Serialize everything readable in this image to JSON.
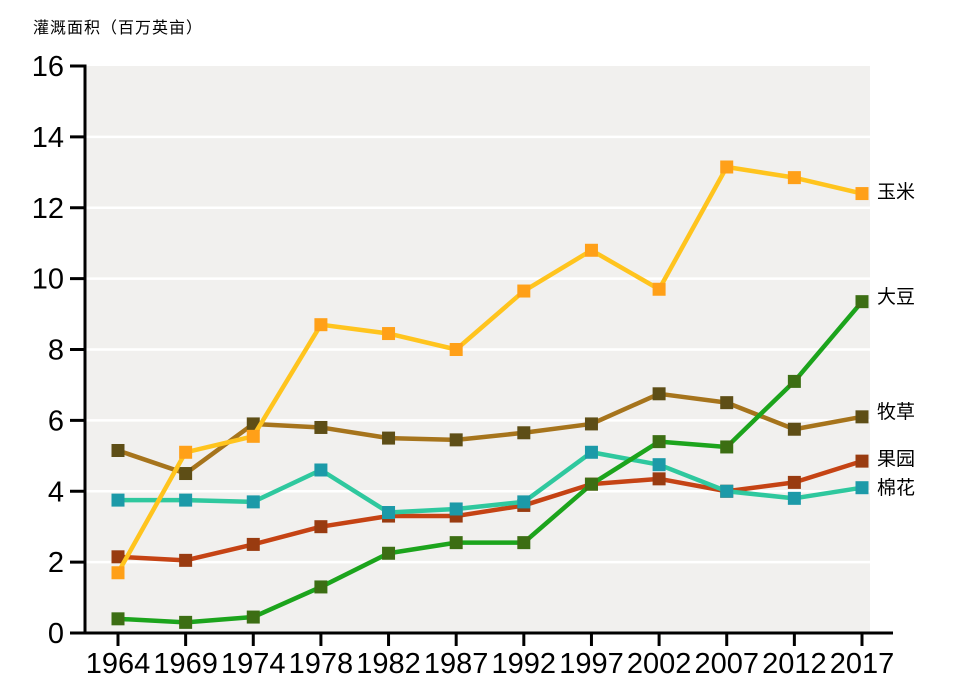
{
  "title": "灌溉面积（百万英亩）",
  "colors": {
    "page_bg": "#FFFFFF",
    "plot_bg": "#F1F0EE",
    "grid": "#FFFFFF",
    "axis": "#000000",
    "text": "#000000"
  },
  "chart_data": {
    "type": "line",
    "title": "灌溉面积（百万英亩）",
    "ylabel": "灌溉面积（百万英亩）",
    "xlabel": "",
    "categories": [
      "1964",
      "1969",
      "1974",
      "1978",
      "1982",
      "1987",
      "1992",
      "1997",
      "2002",
      "2007",
      "2012",
      "2017"
    ],
    "ylim": [
      0,
      16
    ],
    "yticks": [
      0,
      2,
      4,
      6,
      8,
      10,
      12,
      14,
      16
    ],
    "grid": "horizontal-white-on-gray",
    "legend_position": "right-end-labels",
    "marker": "square",
    "series": [
      {
        "name": "玉米",
        "values": [
          1.7,
          5.1,
          5.55,
          8.7,
          8.45,
          8.0,
          9.65,
          10.8,
          9.7,
          13.15,
          12.85,
          12.4
        ],
        "line_color": "#FFC41E",
        "marker_color": "#FFA018",
        "label_y": 191
      },
      {
        "name": "大豆",
        "values": [
          0.4,
          0.3,
          0.45,
          1.3,
          2.25,
          2.55,
          2.55,
          4.2,
          5.4,
          5.25,
          7.1,
          9.35
        ],
        "line_color": "#1CA41C",
        "marker_color": "#3C6E13",
        "label_y": 296
      },
      {
        "name": "牧草",
        "values": [
          5.15,
          4.5,
          5.9,
          5.8,
          5.5,
          5.45,
          5.65,
          5.9,
          6.75,
          6.5,
          5.75,
          6.1
        ],
        "line_color": "#A6741C",
        "marker_color": "#5E4E16",
        "label_y": 411
      },
      {
        "name": "果园",
        "values": [
          2.15,
          2.05,
          2.5,
          3.0,
          3.3,
          3.3,
          3.6,
          4.2,
          4.35,
          4.0,
          4.25,
          4.85
        ],
        "line_color": "#C54314",
        "marker_color": "#993B10",
        "label_y": 458
      },
      {
        "name": "棉花",
        "values": [
          3.75,
          3.75,
          3.7,
          4.6,
          3.4,
          3.5,
          3.7,
          5.1,
          4.75,
          4.0,
          3.8,
          4.1
        ],
        "line_color": "#2FC89E",
        "marker_color": "#1C9AA8",
        "label_y": 487
      }
    ],
    "draw_order": [
      "果园",
      "棉花",
      "牧草",
      "玉米",
      "大豆"
    ]
  }
}
